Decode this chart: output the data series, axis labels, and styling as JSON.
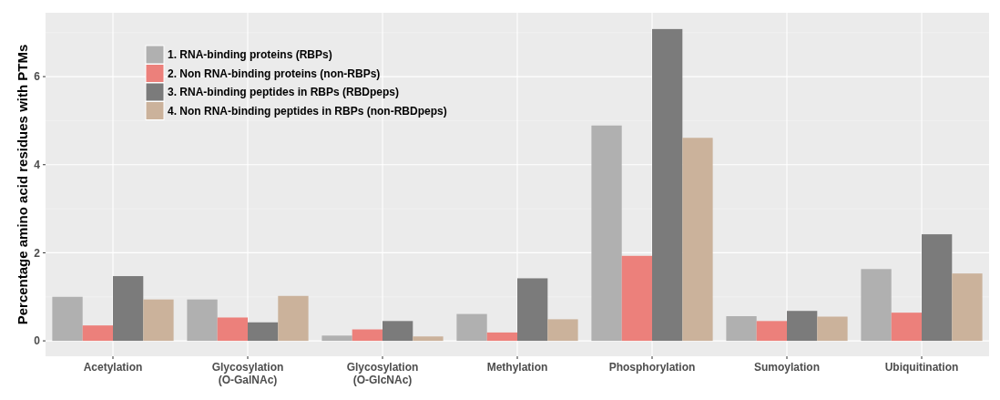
{
  "chart_data": {
    "type": "bar",
    "ylabel": "Percentage amino acid residues with PTMs",
    "categories": [
      "Acetylation",
      "Glycosylation\n(O-GalNAc)",
      "Glycosylation\n(O-GlcNAc)",
      "Methylation",
      "Phosphorylation",
      "Sumoylation",
      "Ubiquitination"
    ],
    "series": [
      {
        "name": "1. RNA-binding proteins (RBPs)",
        "color": "#b0b0b0",
        "values": [
          1.0,
          0.94,
          0.12,
          0.61,
          4.89,
          0.56,
          1.63
        ]
      },
      {
        "name": "2. Non RNA-binding proteins (non-RBPs)",
        "color": "#ec807b",
        "values": [
          0.35,
          0.53,
          0.26,
          0.19,
          1.93,
          0.45,
          0.64
        ]
      },
      {
        "name": "3. RNA-binding peptides in RBPs (RBDpeps)",
        "color": "#7b7b7b",
        "values": [
          1.47,
          0.42,
          0.45,
          1.42,
          7.08,
          0.68,
          2.42
        ]
      },
      {
        "name": "4. Non RNA-binding peptides in RBPs (non-RBDpeps)",
        "color": "#cbb29b",
        "values": [
          0.94,
          1.02,
          0.1,
          0.49,
          4.61,
          0.55,
          1.53
        ]
      }
    ],
    "ylim": [
      -0.35,
      7.45
    ],
    "yticks": [
      0,
      2,
      4,
      6
    ],
    "grid": true,
    "legend": "top left"
  }
}
